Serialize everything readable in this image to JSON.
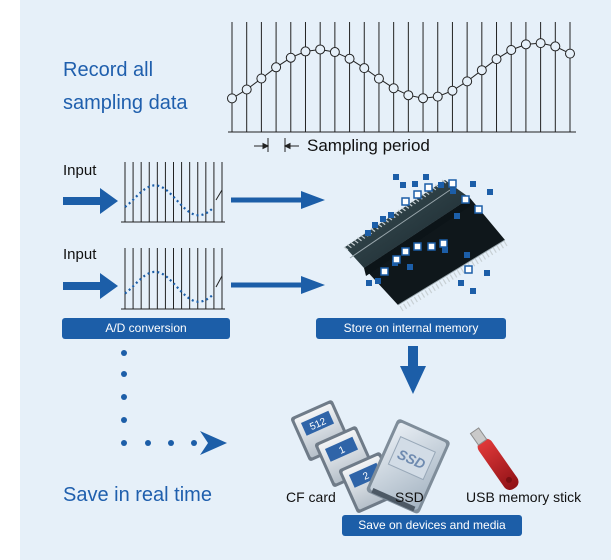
{
  "labels": {
    "record_line1": "Record all",
    "record_line2": "sampling data",
    "sampling_period": "Sampling period",
    "input_top": "Input",
    "input_bottom": "Input",
    "ad_conversion": "A/D conversion",
    "store_internal": "Store on internal memory",
    "save_realtime": "Save in real time",
    "cf_card": "CF card",
    "ssd": "SSD",
    "usb_stick": "USB memory stick",
    "save_devices": "Save on devices and media",
    "cf_card_1": "512",
    "cf_card_2": "1",
    "cf_card_3": "2",
    "ssd_label": "SSD"
  },
  "colors": {
    "background": "#e6f0f9",
    "accent_blue": "#1c5ea8",
    "text_blue": "#1f5fad",
    "chip_dark": "#1f2e33",
    "usb_red": "#c8222a"
  },
  "icons": {
    "memory_chip": "memory-chip-icon",
    "cf_cards": "cf-card-icon",
    "ssd_drive": "ssd-icon",
    "usb_stick": "usb-stick-icon",
    "arrow": "arrow-icon"
  }
}
